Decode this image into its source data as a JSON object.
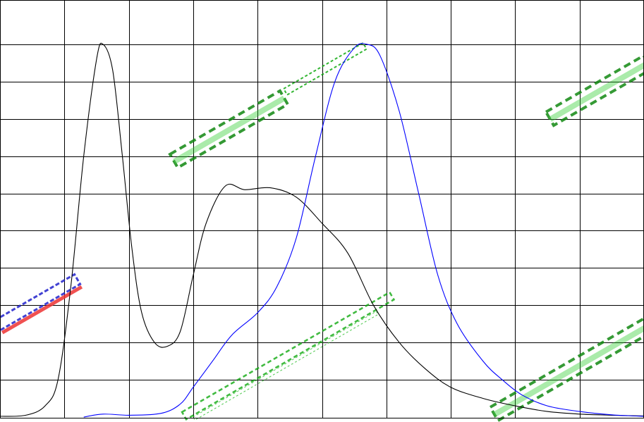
{
  "chart_data": {
    "type": "line",
    "title": "",
    "xlabel": "",
    "ylabel": "",
    "xlim": [
      0,
      10
    ],
    "ylim": [
      0,
      11
    ],
    "grid": true,
    "x_divisions": 10,
    "y_divisions": 11,
    "series": [
      {
        "color": "#000000",
        "points": [
          [
            0,
            0.02
          ],
          [
            0.4,
            0.05
          ],
          [
            0.7,
            0.3
          ],
          [
            0.9,
            1.0
          ],
          [
            1.1,
            3.5
          ],
          [
            1.3,
            7.0
          ],
          [
            1.5,
            9.6
          ],
          [
            1.6,
            10.0
          ],
          [
            1.75,
            9.3
          ],
          [
            1.9,
            7.0
          ],
          [
            2.05,
            4.5
          ],
          [
            2.2,
            2.8
          ],
          [
            2.4,
            2.0
          ],
          [
            2.6,
            1.9
          ],
          [
            2.8,
            2.3
          ],
          [
            3.0,
            3.8
          ],
          [
            3.2,
            5.2
          ],
          [
            3.5,
            6.2
          ],
          [
            3.8,
            6.1
          ],
          [
            4.2,
            6.15
          ],
          [
            4.6,
            5.9
          ],
          [
            5.0,
            5.2
          ],
          [
            5.4,
            4.4
          ],
          [
            5.8,
            3.0
          ],
          [
            6.2,
            2.0
          ],
          [
            6.6,
            1.3
          ],
          [
            7.0,
            0.8
          ],
          [
            7.5,
            0.5
          ],
          [
            8.0,
            0.3
          ],
          [
            8.5,
            0.15
          ],
          [
            9.0,
            0.08
          ],
          [
            9.5,
            0.05
          ],
          [
            10,
            0.03
          ]
        ]
      },
      {
        "color": "#0000ff",
        "points": [
          [
            1.3,
            0.0
          ],
          [
            1.6,
            0.08
          ],
          [
            2.0,
            0.05
          ],
          [
            2.5,
            0.1
          ],
          [
            2.8,
            0.35
          ],
          [
            3.0,
            0.8
          ],
          [
            3.3,
            1.5
          ],
          [
            3.6,
            2.2
          ],
          [
            4.0,
            2.8
          ],
          [
            4.3,
            3.5
          ],
          [
            4.6,
            4.8
          ],
          [
            4.9,
            7.0
          ],
          [
            5.2,
            9.0
          ],
          [
            5.5,
            9.9
          ],
          [
            5.7,
            10.0
          ],
          [
            5.9,
            9.7
          ],
          [
            6.2,
            8.2
          ],
          [
            6.5,
            6.0
          ],
          [
            6.8,
            3.8
          ],
          [
            7.1,
            2.5
          ],
          [
            7.5,
            1.5
          ],
          [
            7.8,
            1.0
          ],
          [
            8.1,
            0.6
          ],
          [
            8.5,
            0.3
          ],
          [
            9.0,
            0.15
          ],
          [
            9.5,
            0.06
          ],
          [
            10,
            0.02
          ]
        ]
      }
    ]
  },
  "watermarks": [
    {
      "name": "watermark-tyanshine-center",
      "color": "#118811"
    },
    {
      "name": "watermark-company-center",
      "color": "#11aa11"
    },
    {
      "name": "watermark-tyanshine-right",
      "color": "#118811"
    },
    {
      "name": "watermark-company-left",
      "color": "#2222cc"
    }
  ]
}
